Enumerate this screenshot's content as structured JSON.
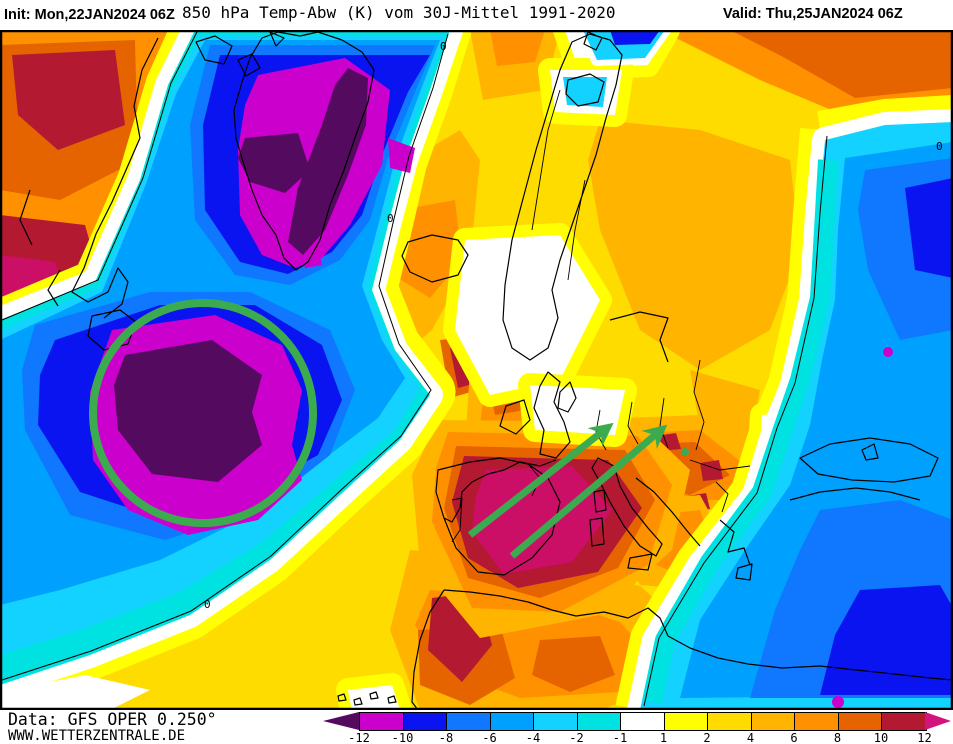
{
  "header": {
    "init_label": "Init: ",
    "init_value": "Mon,22JAN2024 06Z",
    "title": "850 hPa Temp-Abw (K) vom 30J-Mittel 1991-2020",
    "valid_label": "Valid: ",
    "valid_value": "Thu,25JAN2024 06Z"
  },
  "footer": {
    "data_source": "Data: GFS OPER 0.250°",
    "website": "WWW.WETTERZENTRALE.DE"
  },
  "legend": {
    "tick_labels": [
      "-12",
      "-10",
      "-8",
      "-6",
      "-4",
      "-2",
      "-1",
      "1",
      "2",
      "4",
      "6",
      "8",
      "10",
      "12"
    ],
    "segments": [
      {
        "range": "-12..-10",
        "color": "#CC00CC"
      },
      {
        "range": "-10..-8",
        "color": "#0A14F0"
      },
      {
        "range": "-8..-6",
        "color": "#0F78FF"
      },
      {
        "range": "-6..-4",
        "color": "#00A0FF"
      },
      {
        "range": "-4..-2",
        "color": "#14D2FF"
      },
      {
        "range": "-2..-1",
        "color": "#00E1E1"
      },
      {
        "range": "-1..1",
        "color": "#FFFFFF"
      },
      {
        "range": "1..2",
        "color": "#FFFF00"
      },
      {
        "range": "2..4",
        "color": "#FFDC00"
      },
      {
        "range": "4..6",
        "color": "#FFB400"
      },
      {
        "range": "6..8",
        "color": "#FF9100"
      },
      {
        "range": "8..10",
        "color": "#E66400"
      },
      {
        "range": "10..12",
        "color": "#B41932"
      }
    ],
    "below_min_color": "#540A5E",
    "above_max_color": "#D2147D"
  },
  "map": {
    "zero_contour_label": "0",
    "annotation_color": "#3CAB50"
  }
}
